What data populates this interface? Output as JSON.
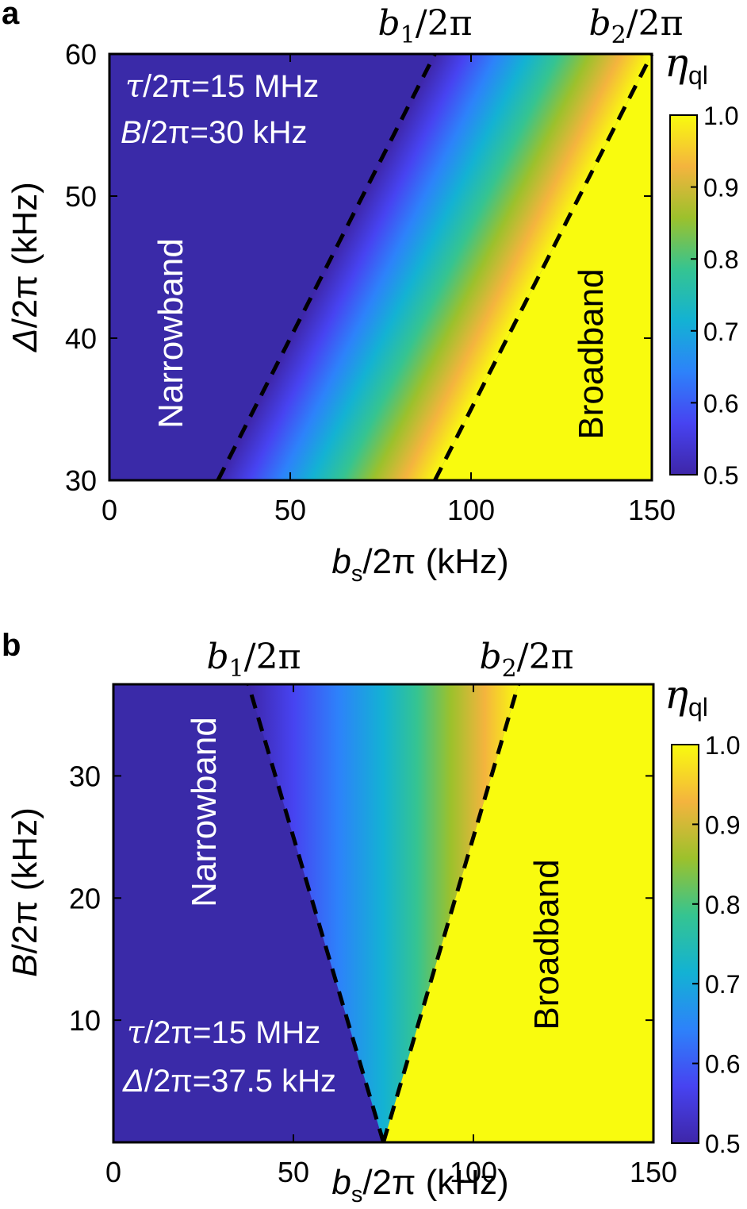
{
  "colors": {
    "narrow": "#3a2aa8",
    "broad": "#f9fb0e",
    "colormap": [
      "#3e26a8",
      "#4743f1",
      "#2d82fa",
      "#13b2d3",
      "#35c491",
      "#9cc12c",
      "#f4b43e",
      "#f9fb0e"
    ]
  },
  "chart_data": [
    {
      "type": "heatmap",
      "panel_label": "a",
      "x": {
        "label_italic": "b",
        "label_sub": "s",
        "label_rest": "/2π (kHz)",
        "range": [
          0,
          150
        ],
        "ticks": [
          0,
          50,
          100,
          150
        ]
      },
      "y": {
        "label_italic": "Δ",
        "label_rest": "/2π (kHz)",
        "range": [
          30,
          60
        ],
        "ticks": [
          30,
          40,
          50,
          60
        ]
      },
      "z": {
        "range": [
          0.5,
          1.0
        ],
        "colorbar_ticks": [
          "0.5",
          "0.6",
          "0.7",
          "0.8",
          "0.9",
          "1.0"
        ],
        "label_main": "η",
        "label_sub": "ql"
      },
      "boundaries": [
        {
          "name": "b1/2π",
          "label_main": "b",
          "label_sub": "1",
          "label_rest": "/2π",
          "x_at_ymin": 30,
          "x_at_ymax": 90
        },
        {
          "name": "b2/2π",
          "label_main": "b",
          "label_sub": "2",
          "label_rest": "/2π",
          "x_at_ymin": 90,
          "x_at_ymax": 150
        }
      ],
      "annotations": {
        "line1_sym": "τ",
        "line1_rest": "/2π=15 MHz",
        "line2_sym": "B",
        "line2_rest": "/2π=30 kHz",
        "narrow": "Narrowband",
        "broad": "Broadband"
      }
    },
    {
      "type": "heatmap",
      "panel_label": "b",
      "x": {
        "label_italic": "b",
        "label_sub": "s",
        "label_rest": "/2π (kHz)",
        "range": [
          0,
          150
        ],
        "ticks": [
          0,
          50,
          100,
          150
        ]
      },
      "y": {
        "label_italic": "B",
        "label_rest": "/2π (kHz)",
        "range": [
          0,
          37.5
        ],
        "ticks": [
          10,
          20,
          30
        ]
      },
      "z": {
        "range": [
          0.5,
          1.0
        ],
        "colorbar_ticks": [
          "0.5",
          "0.6",
          "0.7",
          "0.8",
          "0.9",
          "1.0"
        ],
        "label_main": "η",
        "label_sub": "ql"
      },
      "boundaries": [
        {
          "name": "b1/2π",
          "label_main": "b",
          "label_sub": "1",
          "label_rest": "/2π",
          "x_at_ymin": 75,
          "x_at_ymax": 37.5
        },
        {
          "name": "b2/2π",
          "label_main": "b",
          "label_sub": "2",
          "label_rest": "/2π",
          "x_at_ymin": 75,
          "x_at_ymax": 112.5
        }
      ],
      "annotations": {
        "line1_sym": "τ",
        "line1_rest": "/2π=15 MHz",
        "line2_sym": "Δ",
        "line2_rest": "/2π=37.5 kHz",
        "narrow": "Narrowband",
        "broad": "Broadband"
      }
    }
  ]
}
